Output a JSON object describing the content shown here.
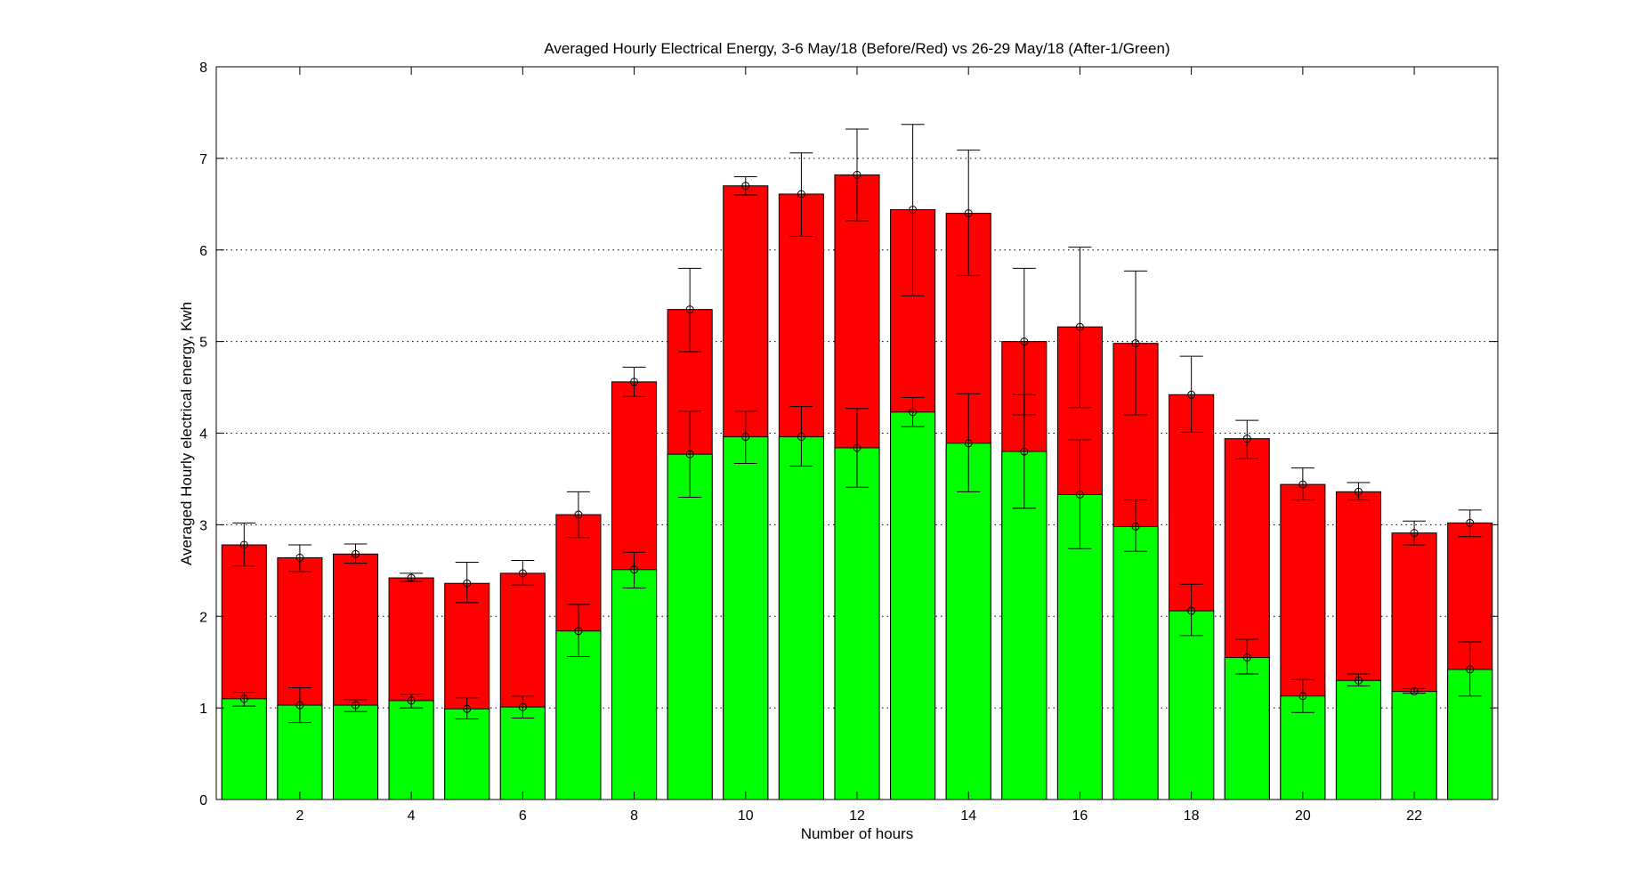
{
  "chart_data": {
    "type": "bar",
    "title": "Averaged Hourly Electrical Energy, 3-6 May/18 (Before/Red) vs 26-29 May/18 (After-1/Green)",
    "xlabel": "Number of hours",
    "ylabel": "Averaged Hourly electrical energy, Kwh",
    "xlim": [
      0.5,
      23.5
    ],
    "ylim": [
      0,
      8
    ],
    "xticks": [
      2,
      4,
      6,
      8,
      10,
      12,
      14,
      16,
      18,
      20,
      22
    ],
    "yticks": [
      0,
      1,
      2,
      3,
      4,
      5,
      6,
      7,
      8
    ],
    "grid": "horizontal dotted",
    "categories": [
      1,
      2,
      3,
      4,
      5,
      6,
      7,
      8,
      9,
      10,
      11,
      12,
      13,
      14,
      15,
      16,
      17,
      18,
      19,
      20,
      21,
      22,
      23
    ],
    "series": [
      {
        "name": "Before",
        "color": "#ff0000",
        "values": [
          2.78,
          2.64,
          2.68,
          2.42,
          2.36,
          2.47,
          3.11,
          4.56,
          5.35,
          6.7,
          6.61,
          6.82,
          6.44,
          6.4,
          5.0,
          5.16,
          4.98,
          4.42,
          3.94,
          3.44,
          3.36,
          2.91,
          3.02
        ],
        "err_low": [
          2.55,
          2.49,
          2.58,
          2.38,
          2.15,
          2.34,
          2.86,
          4.4,
          4.89,
          6.6,
          6.15,
          6.32,
          5.5,
          5.72,
          4.2,
          4.28,
          4.2,
          4.01,
          3.72,
          3.27,
          3.27,
          2.78,
          2.87
        ],
        "err_high": [
          3.02,
          2.78,
          2.79,
          2.47,
          2.59,
          2.61,
          3.36,
          4.72,
          5.8,
          6.8,
          7.06,
          7.32,
          7.37,
          7.09,
          5.8,
          6.03,
          5.77,
          4.84,
          4.14,
          3.62,
          3.46,
          3.04,
          3.16
        ]
      },
      {
        "name": "After-1",
        "color": "#00ff00",
        "values": [
          1.1,
          1.03,
          1.03,
          1.08,
          0.99,
          1.01,
          1.84,
          2.51,
          3.77,
          3.96,
          3.96,
          3.84,
          4.23,
          3.89,
          3.8,
          3.33,
          2.98,
          2.06,
          1.55,
          1.13,
          1.3,
          1.18,
          1.42
        ],
        "err_low": [
          1.02,
          0.84,
          0.96,
          1.0,
          0.88,
          0.89,
          1.56,
          2.31,
          3.3,
          3.67,
          3.64,
          3.41,
          4.07,
          3.36,
          3.18,
          2.74,
          2.71,
          1.79,
          1.37,
          0.95,
          1.24,
          1.16,
          1.13
        ],
        "err_high": [
          1.17,
          1.22,
          1.09,
          1.15,
          1.11,
          1.13,
          2.13,
          2.7,
          4.24,
          4.24,
          4.29,
          4.27,
          4.39,
          4.43,
          4.42,
          3.93,
          3.27,
          2.35,
          1.75,
          1.31,
          1.37,
          1.21,
          1.72
        ]
      }
    ]
  }
}
